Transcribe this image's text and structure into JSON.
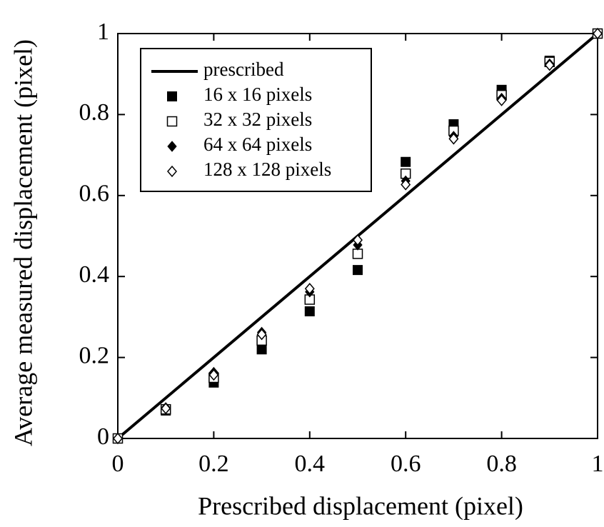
{
  "chart_data": {
    "type": "scatter",
    "xlabel": "Prescribed displacement (pixel)",
    "ylabel": "Average measured displacement (pixel)",
    "x": [
      0,
      0.1,
      0.2,
      0.3,
      0.4,
      0.5,
      0.6,
      0.7,
      0.8,
      0.9,
      1
    ],
    "series": [
      {
        "name": "prescribed",
        "style": "line",
        "color": "#000000",
        "x": [
          0,
          1
        ],
        "values": [
          0,
          1
        ]
      },
      {
        "name": "16 x 16 pixels",
        "style": "marker",
        "marker": "square",
        "filled": true,
        "color": "#000000",
        "values": [
          0,
          0.069,
          0.138,
          0.22,
          0.314,
          0.416,
          0.683,
          0.776,
          0.861,
          0.933,
          1
        ]
      },
      {
        "name": "32 x 32 pixels",
        "style": "marker",
        "marker": "square",
        "filled": false,
        "color": "#000000",
        "values": [
          0,
          0.072,
          0.15,
          0.242,
          0.343,
          0.456,
          0.654,
          0.76,
          0.848,
          0.93,
          1
        ]
      },
      {
        "name": "64 x 64 pixels",
        "style": "marker",
        "marker": "diamond",
        "filled": true,
        "color": "#000000",
        "values": [
          0,
          0.076,
          0.163,
          0.262,
          0.362,
          0.478,
          0.636,
          0.746,
          0.84,
          0.925,
          1
        ]
      },
      {
        "name": "128 x 128 pixels",
        "style": "marker",
        "marker": "diamond",
        "filled": false,
        "color": "#000000",
        "values": [
          0,
          0.074,
          0.157,
          0.257,
          0.37,
          0.49,
          0.627,
          0.74,
          0.835,
          0.922,
          1
        ]
      }
    ],
    "xlim": [
      0,
      1
    ],
    "ylim": [
      0,
      1
    ],
    "xticks": [
      0,
      0.2,
      0.4,
      0.6,
      0.8,
      1
    ],
    "yticks": [
      0,
      0.2,
      0.4,
      0.6,
      0.8,
      1
    ],
    "legend": "upper left"
  }
}
